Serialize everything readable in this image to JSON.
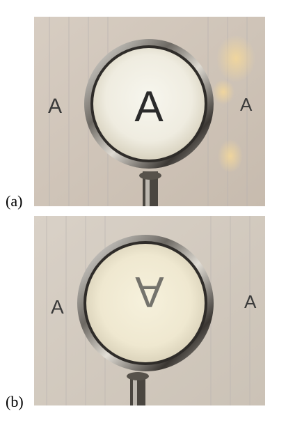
{
  "panels": [
    {
      "label": "(a)",
      "letters": {
        "left": "A",
        "magnified": "A",
        "right": "A"
      },
      "magnified_orientation": "upright"
    },
    {
      "label": "(b)",
      "letters": {
        "left": "A",
        "magnified": "A",
        "right": "A"
      },
      "magnified_orientation": "inverted"
    }
  ],
  "colors": {
    "paper": "#cfc4b8",
    "rule_line": "#b9b3b0",
    "lens_interior_a": "#f1eee2",
    "lens_interior_b": "#f0ead4",
    "ink": "#2b2b2b",
    "chrome_dark": "#3a3a3a",
    "chrome_light": "#e8e6e2"
  }
}
